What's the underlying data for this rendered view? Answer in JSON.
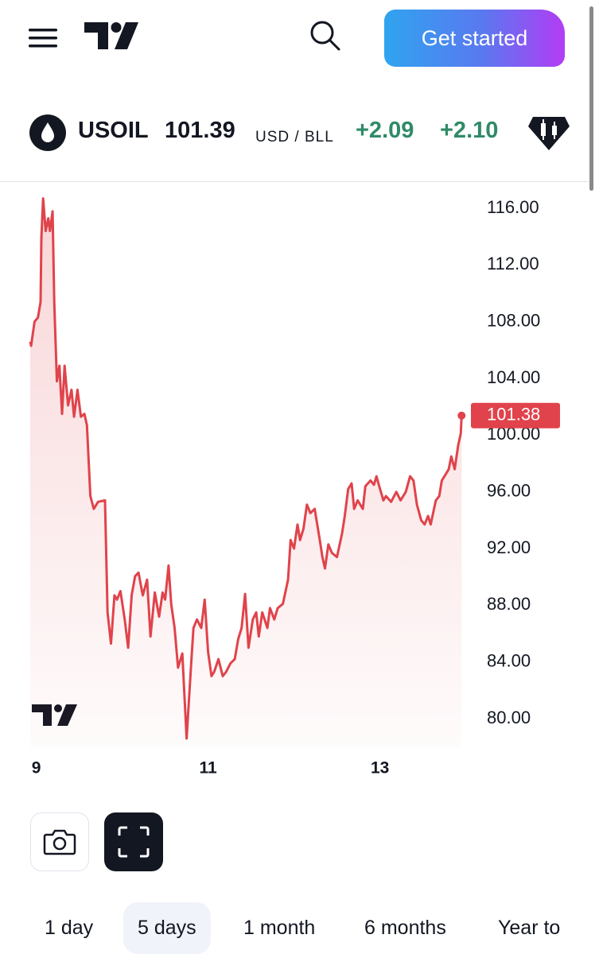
{
  "header": {
    "button": "Get started"
  },
  "symbol": {
    "ticker": "USOIL",
    "price": "101.39",
    "unit": "USD / BLL",
    "change": "+2.09",
    "change_percent": "+2.10"
  },
  "chart_data": {
    "type": "line",
    "x": [
      8.93,
      8.94,
      8.98,
      9.02,
      9.05,
      9.06,
      9.08,
      9.11,
      9.14,
      9.16,
      9.19,
      9.21,
      9.24,
      9.27,
      9.3,
      9.33,
      9.37,
      9.41,
      9.44,
      9.48,
      9.52,
      9.56,
      9.59,
      9.63,
      9.67,
      9.72,
      9.8,
      9.83,
      9.87,
      9.91,
      9.94,
      9.98,
      10.03,
      10.07,
      10.11,
      10.15,
      10.19,
      10.24,
      10.29,
      10.33,
      10.38,
      10.43,
      10.47,
      10.5,
      10.54,
      10.57,
      10.61,
      10.65,
      10.7,
      10.75,
      10.8,
      10.83,
      10.87,
      10.92,
      10.96,
      11.0,
      11.04,
      11.07,
      11.12,
      11.17,
      11.21,
      11.26,
      11.31,
      11.35,
      11.39,
      11.43,
      11.47,
      11.52,
      11.56,
      11.59,
      11.63,
      11.69,
      11.72,
      11.77,
      11.81,
      11.87,
      11.93,
      11.96,
      12.0,
      12.04,
      12.07,
      12.11,
      12.15,
      12.19,
      12.24,
      12.3,
      12.33,
      12.36,
      12.4,
      12.44,
      12.5,
      12.56,
      12.59,
      12.63,
      12.67,
      12.7,
      12.74,
      12.8,
      12.83,
      12.89,
      12.93,
      12.96,
      13.0,
      13.04,
      13.07,
      13.13,
      13.19,
      13.24,
      13.3,
      13.35,
      13.39,
      13.43,
      13.48,
      13.52,
      13.56,
      13.59,
      13.65,
      13.69,
      13.72,
      13.76,
      13.8,
      13.83,
      13.87,
      13.91,
      13.94,
      13.95
    ],
    "series": [
      {
        "name": "USOIL",
        "color": "#e0434b",
        "values": [
          106.6,
          106.3,
          108.0,
          108.3,
          109.4,
          113.9,
          116.7,
          114.4,
          115.3,
          114.4,
          115.8,
          109.4,
          103.8,
          104.9,
          101.5,
          104.9,
          102.1,
          103.2,
          101.3,
          103.2,
          101.3,
          101.5,
          100.7,
          95.7,
          94.8,
          95.3,
          95.4,
          87.5,
          85.3,
          88.7,
          88.4,
          89.0,
          87.0,
          85.0,
          88.7,
          90.05,
          90.3,
          88.7,
          89.8,
          85.8,
          88.9,
          87.2,
          88.9,
          88.4,
          90.8,
          88.1,
          86.4,
          83.6,
          84.6,
          78.6,
          83.6,
          86.4,
          87.0,
          86.4,
          88.4,
          84.7,
          83.0,
          83.3,
          84.2,
          83.0,
          83.3,
          83.9,
          84.2,
          85.6,
          86.4,
          88.8,
          85.0,
          87.0,
          87.5,
          85.8,
          87.5,
          86.4,
          87.8,
          87.0,
          87.8,
          88.1,
          89.8,
          92.6,
          92.0,
          93.7,
          92.6,
          93.4,
          95.1,
          94.5,
          94.8,
          92.6,
          91.4,
          90.6,
          92.3,
          91.7,
          91.4,
          93.1,
          94.3,
          96.2,
          96.6,
          94.8,
          95.4,
          94.8,
          96.4,
          96.8,
          96.5,
          97.1,
          96.2,
          95.4,
          95.7,
          95.3,
          96.0,
          95.4,
          96.0,
          97.1,
          96.8,
          95.1,
          94.0,
          93.7,
          94.3,
          93.7,
          95.4,
          95.7,
          96.8,
          97.2,
          97.6,
          98.5,
          97.6,
          99.3,
          100.1,
          101.38
        ]
      }
    ],
    "last_price_label": "101.38",
    "xlim": [
      8.93,
      14.04
    ],
    "xticks": [
      9,
      11,
      13
    ],
    "ylim": [
      77.98,
      117.8
    ],
    "yticks": [
      {
        "value": 80,
        "label": "80.00"
      },
      {
        "value": 84,
        "label": "84.00"
      },
      {
        "value": 88,
        "label": "88.00"
      },
      {
        "value": 92,
        "label": "92.00"
      },
      {
        "value": 96,
        "label": "96.00"
      },
      {
        "value": 100,
        "label": "100.00"
      },
      {
        "value": 104,
        "label": "104.00"
      },
      {
        "value": 108,
        "label": "108.00"
      },
      {
        "value": 112,
        "label": "112.00"
      },
      {
        "value": 116,
        "label": "116.00"
      }
    ],
    "grid": false
  },
  "range_tabs": [
    "1 day",
    "5 days",
    "1 month",
    "6 months",
    "Year to"
  ],
  "selected_tab": 1
}
